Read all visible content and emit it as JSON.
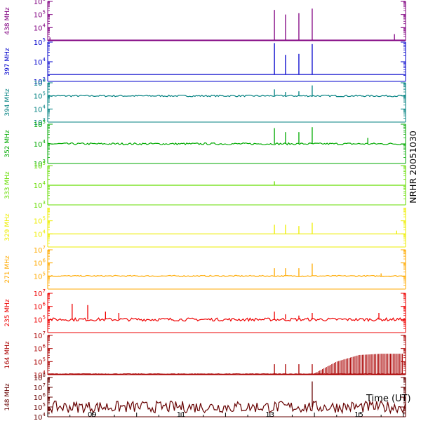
{
  "chart_data": {
    "type": "line",
    "title": "NRHR 20051030",
    "xlabel": "Time (UT)",
    "xlim": [
      8.0,
      16.05
    ],
    "x_ticks": [
      {
        "value": 9,
        "label": "09"
      },
      {
        "value": 11,
        "label": "11"
      },
      {
        "value": 13,
        "label": "13"
      },
      {
        "value": 15,
        "label": "15"
      }
    ],
    "series": [
      {
        "name": "438 MHz",
        "color": "#800080",
        "scale": "log",
        "ylim": [
          3,
          6
        ],
        "tick_labels": [
          {
            "exp": 6,
            "text": "10^6"
          },
          {
            "exp": 5,
            "text": "10^5"
          },
          {
            "exp": 4,
            "text": "10^4"
          }
        ],
        "baseline": 3.05,
        "noise": 0.0,
        "bursts": [
          {
            "x": 8.05,
            "value": 3.25
          },
          {
            "x": 13.1,
            "value": 5.35
          },
          {
            "x": 13.35,
            "value": 5.0
          },
          {
            "x": 13.65,
            "value": 5.1
          },
          {
            "x": 13.95,
            "value": 5.45
          },
          {
            "x": 15.8,
            "value": 3.5
          }
        ],
        "envelope": []
      },
      {
        "name": "397 MHz",
        "color": "#0000cc",
        "scale": "log",
        "ylim": [
          3,
          5
        ],
        "tick_labels": [
          {
            "exp": 5,
            "text": "10^5"
          },
          {
            "exp": 4,
            "text": "10^4"
          },
          {
            "exp": 3,
            "text": "10^3"
          }
        ],
        "baseline": 3.35,
        "noise": 0.0,
        "bursts": [
          {
            "x": 13.1,
            "value": 4.95
          },
          {
            "x": 13.35,
            "value": 4.35
          },
          {
            "x": 13.65,
            "value": 4.4
          },
          {
            "x": 13.95,
            "value": 4.9
          }
        ],
        "envelope": []
      },
      {
        "name": "394 MHz",
        "color": "#008080",
        "scale": "log",
        "ylim": [
          3,
          6
        ],
        "tick_labels": [
          {
            "exp": 6,
            "text": "10^6"
          },
          {
            "exp": 5,
            "text": "10^5"
          },
          {
            "exp": 4,
            "text": "10^4"
          },
          {
            "exp": 3,
            "text": "10^3"
          }
        ],
        "baseline": 5.0,
        "noise": 0.06,
        "bursts": [
          {
            "x": 13.1,
            "value": 5.5
          },
          {
            "x": 13.35,
            "value": 5.3
          },
          {
            "x": 13.65,
            "value": 5.35
          },
          {
            "x": 13.95,
            "value": 5.8
          }
        ],
        "envelope": []
      },
      {
        "name": "352 MHz",
        "color": "#00aa00",
        "scale": "log",
        "ylim": [
          3,
          5
        ],
        "tick_labels": [
          {
            "exp": 5,
            "text": "10^5"
          },
          {
            "exp": 4,
            "text": "10^4"
          },
          {
            "exp": 3,
            "text": "10^3"
          }
        ],
        "baseline": 4.0,
        "noise": 0.05,
        "bursts": [
          {
            "x": 13.1,
            "value": 4.8
          },
          {
            "x": 13.35,
            "value": 4.6
          },
          {
            "x": 13.65,
            "value": 4.6
          },
          {
            "x": 13.95,
            "value": 4.85
          },
          {
            "x": 15.2,
            "value": 4.3
          }
        ],
        "envelope": []
      },
      {
        "name": "333 MHz",
        "color": "#66dd00",
        "scale": "log",
        "ylim": [
          3,
          5
        ],
        "tick_labels": [
          {
            "exp": 5,
            "text": "10^5"
          },
          {
            "exp": 4,
            "text": "10^4"
          },
          {
            "exp": 3,
            "text": "10^3"
          }
        ],
        "baseline": 4.0,
        "noise": 0.0,
        "bursts": [
          {
            "x": 13.1,
            "value": 4.2
          }
        ],
        "envelope": []
      },
      {
        "name": "329 MHz",
        "color": "#eeee00",
        "scale": "log",
        "ylim": [
          3,
          6
        ],
        "tick_labels": [
          {
            "exp": 5,
            "text": "10^5"
          },
          {
            "exp": 4,
            "text": "10^4"
          }
        ],
        "baseline": 4.0,
        "noise": 0.0,
        "bursts": [
          {
            "x": 13.1,
            "value": 4.7
          },
          {
            "x": 13.35,
            "value": 4.7
          },
          {
            "x": 13.65,
            "value": 4.6
          },
          {
            "x": 13.95,
            "value": 4.85
          },
          {
            "x": 15.85,
            "value": 4.25
          }
        ],
        "envelope": []
      },
      {
        "name": "271 MHz",
        "color": "#ffaa00",
        "scale": "log",
        "ylim": [
          4,
          7
        ],
        "tick_labels": [
          {
            "exp": 7,
            "text": "10^7"
          },
          {
            "exp": 6,
            "text": "10^6"
          },
          {
            "exp": 5,
            "text": "10^5"
          }
        ],
        "baseline": 5.0,
        "noise": 0.05,
        "bursts": [
          {
            "x": 13.1,
            "value": 5.6
          },
          {
            "x": 13.35,
            "value": 5.6
          },
          {
            "x": 13.65,
            "value": 5.6
          },
          {
            "x": 13.95,
            "value": 5.95
          },
          {
            "x": 15.5,
            "value": 5.2
          }
        ],
        "envelope": []
      },
      {
        "name": "235 MHz",
        "color": "#ee0000",
        "scale": "log",
        "ylim": [
          4,
          7
        ],
        "tick_labels": [
          {
            "exp": 7,
            "text": "10^7"
          },
          {
            "exp": 6,
            "text": "10^6"
          },
          {
            "exp": 5,
            "text": "10^5"
          }
        ],
        "baseline": 5.0,
        "noise": 0.12,
        "bursts": [
          {
            "x": 8.55,
            "value": 6.2
          },
          {
            "x": 8.9,
            "value": 6.1
          },
          {
            "x": 9.3,
            "value": 5.6
          },
          {
            "x": 9.6,
            "value": 5.5
          },
          {
            "x": 13.1,
            "value": 5.6
          },
          {
            "x": 13.35,
            "value": 5.4
          },
          {
            "x": 13.65,
            "value": 5.3
          },
          {
            "x": 13.95,
            "value": 5.5
          },
          {
            "x": 15.45,
            "value": 5.5
          }
        ],
        "envelope": []
      },
      {
        "name": "164 MHz",
        "color": "#aa0000",
        "scale": "log",
        "ylim": [
          4,
          7
        ],
        "tick_labels": [
          {
            "exp": 7,
            "text": "10^7"
          },
          {
            "exp": 6,
            "text": "10^6"
          },
          {
            "exp": 5,
            "text": "10^5"
          },
          {
            "exp": 4,
            "text": "10^4"
          }
        ],
        "baseline": 4.05,
        "noise": 0.02,
        "bursts": [
          {
            "x": 13.1,
            "value": 4.8
          },
          {
            "x": 13.35,
            "value": 4.8
          },
          {
            "x": 13.65,
            "value": 4.8
          },
          {
            "x": 13.95,
            "value": 4.8
          }
        ],
        "envelope": [
          {
            "x": 14.0,
            "value": 4.1
          },
          {
            "x": 14.5,
            "value": 5.0
          },
          {
            "x": 15.0,
            "value": 5.5
          },
          {
            "x": 15.5,
            "value": 5.6
          },
          {
            "x": 16.0,
            "value": 5.6
          }
        ]
      },
      {
        "name": "148 MHz",
        "color": "#660000",
        "scale": "log",
        "ylim": [
          4,
          8
        ],
        "tick_labels": [
          {
            "exp": 8,
            "text": "10^8"
          },
          {
            "exp": 7,
            "text": "10^7"
          },
          {
            "exp": 6,
            "text": "10^6"
          },
          {
            "exp": 5,
            "text": "10^5"
          },
          {
            "exp": 4,
            "text": "10^4"
          }
        ],
        "baseline": 5.0,
        "noise": 0.6,
        "bursts": [
          {
            "x": 13.95,
            "value": 7.6
          }
        ],
        "envelope": []
      }
    ]
  }
}
